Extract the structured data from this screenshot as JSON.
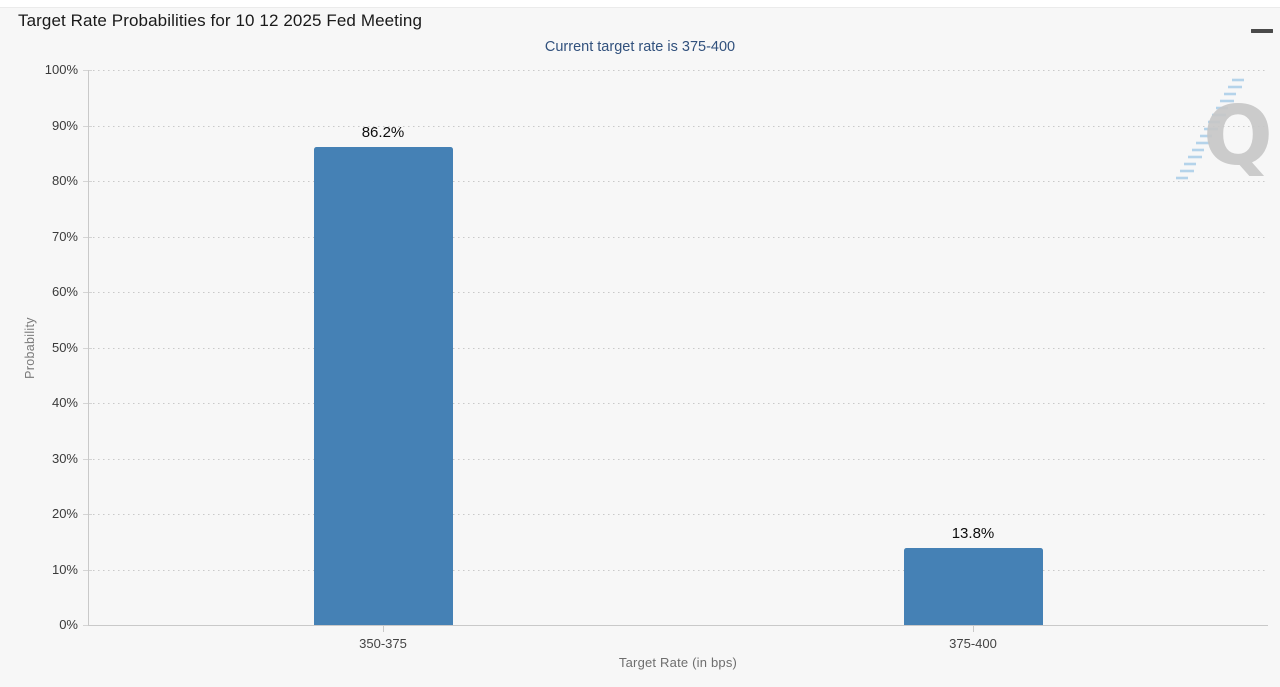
{
  "header": {
    "title": "Target Rate Probabilities for 10 12 2025 Fed Meeting",
    "menu_icon": "hamburger-icon"
  },
  "subtitle": "Current target rate is 375-400",
  "watermark": {
    "letter": "Q"
  },
  "colors": {
    "background": "#F7F7F7",
    "bar": "#4581B5",
    "subtitle_text": "#31517D",
    "title_text": "#1A1A1A",
    "axis_line": "#C9C9C9",
    "grid_dots": "#C9C9C9",
    "tick_text": "#3A3A3A",
    "axis_title_text": "#6E6E6E",
    "watermark_gray": "#C7C7C7",
    "watermark_blue": "#A9CDE8"
  },
  "chart_data": {
    "type": "bar",
    "title": "Target Rate Probabilities for 10 12 2025 Fed Meeting",
    "subtitle": "Current target rate is 375-400",
    "categories": [
      "350-375",
      "375-400"
    ],
    "values": [
      86.2,
      13.8
    ],
    "value_labels": [
      "86.2%",
      "13.8%"
    ],
    "xlabel": "Target Rate (in bps)",
    "ylabel": "Probability",
    "ylim": [
      0,
      100
    ],
    "ytick_step": 10,
    "ytick_suffix": "%",
    "grid": "horizontal dotted lines, on",
    "legend": "none",
    "bar_color": "#4581B5"
  }
}
